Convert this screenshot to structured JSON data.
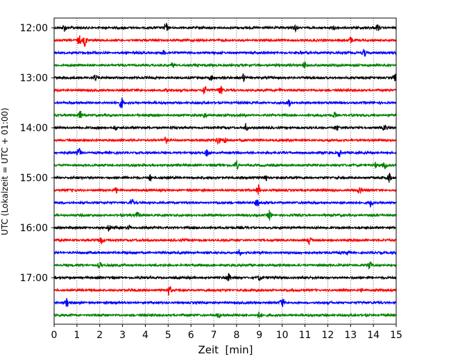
{
  "chart_data": {
    "type": "line",
    "title": "",
    "xlabel": "Zeit  [min]",
    "ylabel": "UTC (Lokalzeit = UTC + 01:00)",
    "xlim": [
      0,
      15
    ],
    "x_ticks": [
      "0",
      "1",
      "2",
      "3",
      "4",
      "5",
      "6",
      "7",
      "8",
      "9",
      "10",
      "11",
      "12",
      "13",
      "14",
      "15"
    ],
    "y_ticks": [
      "12:00",
      "13:00",
      "14:00",
      "15:00",
      "16:00",
      "17:00"
    ],
    "vertical_grid": true,
    "trace_interval_minutes": 15,
    "trace_colors": [
      "#000000",
      "#ff0000",
      "#0000ff",
      "#008000"
    ],
    "traces": [
      {
        "start": "12:00",
        "events": [
          [
            0.45,
            1.0
          ],
          [
            4.9,
            1.4
          ],
          [
            10.6,
            0.9
          ],
          [
            12.3,
            0.8
          ],
          [
            14.2,
            1.0
          ]
        ]
      },
      {
        "start": "12:15",
        "events": [
          [
            1.1,
            1.5
          ],
          [
            1.35,
            1.8
          ],
          [
            13.0,
            0.9
          ]
        ]
      },
      {
        "start": "12:30",
        "events": [
          [
            4.8,
            0.7
          ],
          [
            13.6,
            1.2
          ]
        ]
      },
      {
        "start": "12:45",
        "events": [
          [
            5.2,
            0.7
          ],
          [
            11.0,
            1.2
          ]
        ]
      },
      {
        "start": "13:00",
        "events": [
          [
            1.8,
            0.9
          ],
          [
            6.9,
            0.8
          ],
          [
            8.3,
            1.2
          ],
          [
            14.95,
            1.0
          ]
        ]
      },
      {
        "start": "13:15",
        "events": [
          [
            4.9,
            0.9
          ],
          [
            6.6,
            1.6
          ],
          [
            7.3,
            1.3
          ],
          [
            9.9,
            0.6
          ]
        ]
      },
      {
        "start": "13:30",
        "events": [
          [
            2.95,
            1.6
          ],
          [
            10.3,
            1.0
          ]
        ]
      },
      {
        "start": "13:45",
        "events": [
          [
            1.15,
            1.2
          ],
          [
            6.6,
            0.8
          ],
          [
            12.3,
            0.8
          ]
        ]
      },
      {
        "start": "14:00",
        "events": [
          [
            2.7,
            0.8
          ],
          [
            8.4,
            1.2
          ],
          [
            12.4,
            0.8
          ],
          [
            14.5,
            0.9
          ]
        ]
      },
      {
        "start": "14:15",
        "events": [
          [
            4.9,
            0.8
          ],
          [
            7.2,
            1.3
          ],
          [
            7.5,
            1.0
          ]
        ]
      },
      {
        "start": "14:30",
        "events": [
          [
            1.1,
            1.4
          ],
          [
            6.7,
            1.0
          ],
          [
            12.5,
            1.3
          ]
        ]
      },
      {
        "start": "14:45",
        "events": [
          [
            8.0,
            1.3
          ],
          [
            14.1,
            0.8
          ],
          [
            14.5,
            0.9
          ]
        ]
      },
      {
        "start": "15:00",
        "events": [
          [
            4.2,
            1.0
          ],
          [
            9.25,
            1.2
          ],
          [
            14.7,
            1.4
          ]
        ]
      },
      {
        "start": "15:15",
        "events": [
          [
            2.7,
            0.8
          ],
          [
            8.95,
            1.8
          ],
          [
            13.4,
            1.1
          ]
        ]
      },
      {
        "start": "15:30",
        "events": [
          [
            3.4,
            1.3
          ],
          [
            8.9,
            1.0
          ],
          [
            13.9,
            1.3
          ]
        ]
      },
      {
        "start": "15:45",
        "events": [
          [
            3.65,
            0.9
          ],
          [
            9.45,
            1.6
          ]
        ]
      },
      {
        "start": "16:00",
        "events": [
          [
            2.4,
            0.9
          ],
          [
            3.3,
            0.7
          ]
        ]
      },
      {
        "start": "16:15",
        "events": [
          [
            2.05,
            1.1
          ],
          [
            11.2,
            1.1
          ]
        ]
      },
      {
        "start": "16:30",
        "events": [
          [
            8.1,
            1.4
          ],
          [
            12.9,
            0.7
          ]
        ]
      },
      {
        "start": "16:45",
        "events": [
          [
            2.0,
            0.8
          ],
          [
            13.85,
            1.4
          ]
        ]
      },
      {
        "start": "17:00",
        "events": [
          [
            7.65,
            1.3
          ],
          [
            9.0,
            0.7
          ]
        ]
      },
      {
        "start": "17:15",
        "events": [
          [
            5.05,
            1.5
          ],
          [
            13.5,
            0.5
          ]
        ]
      },
      {
        "start": "17:30",
        "events": [
          [
            0.55,
            1.2
          ],
          [
            10.0,
            1.5
          ]
        ]
      },
      {
        "start": "17:45",
        "events": [
          [
            7.2,
            0.7
          ],
          [
            9.0,
            1.0
          ]
        ]
      }
    ]
  }
}
